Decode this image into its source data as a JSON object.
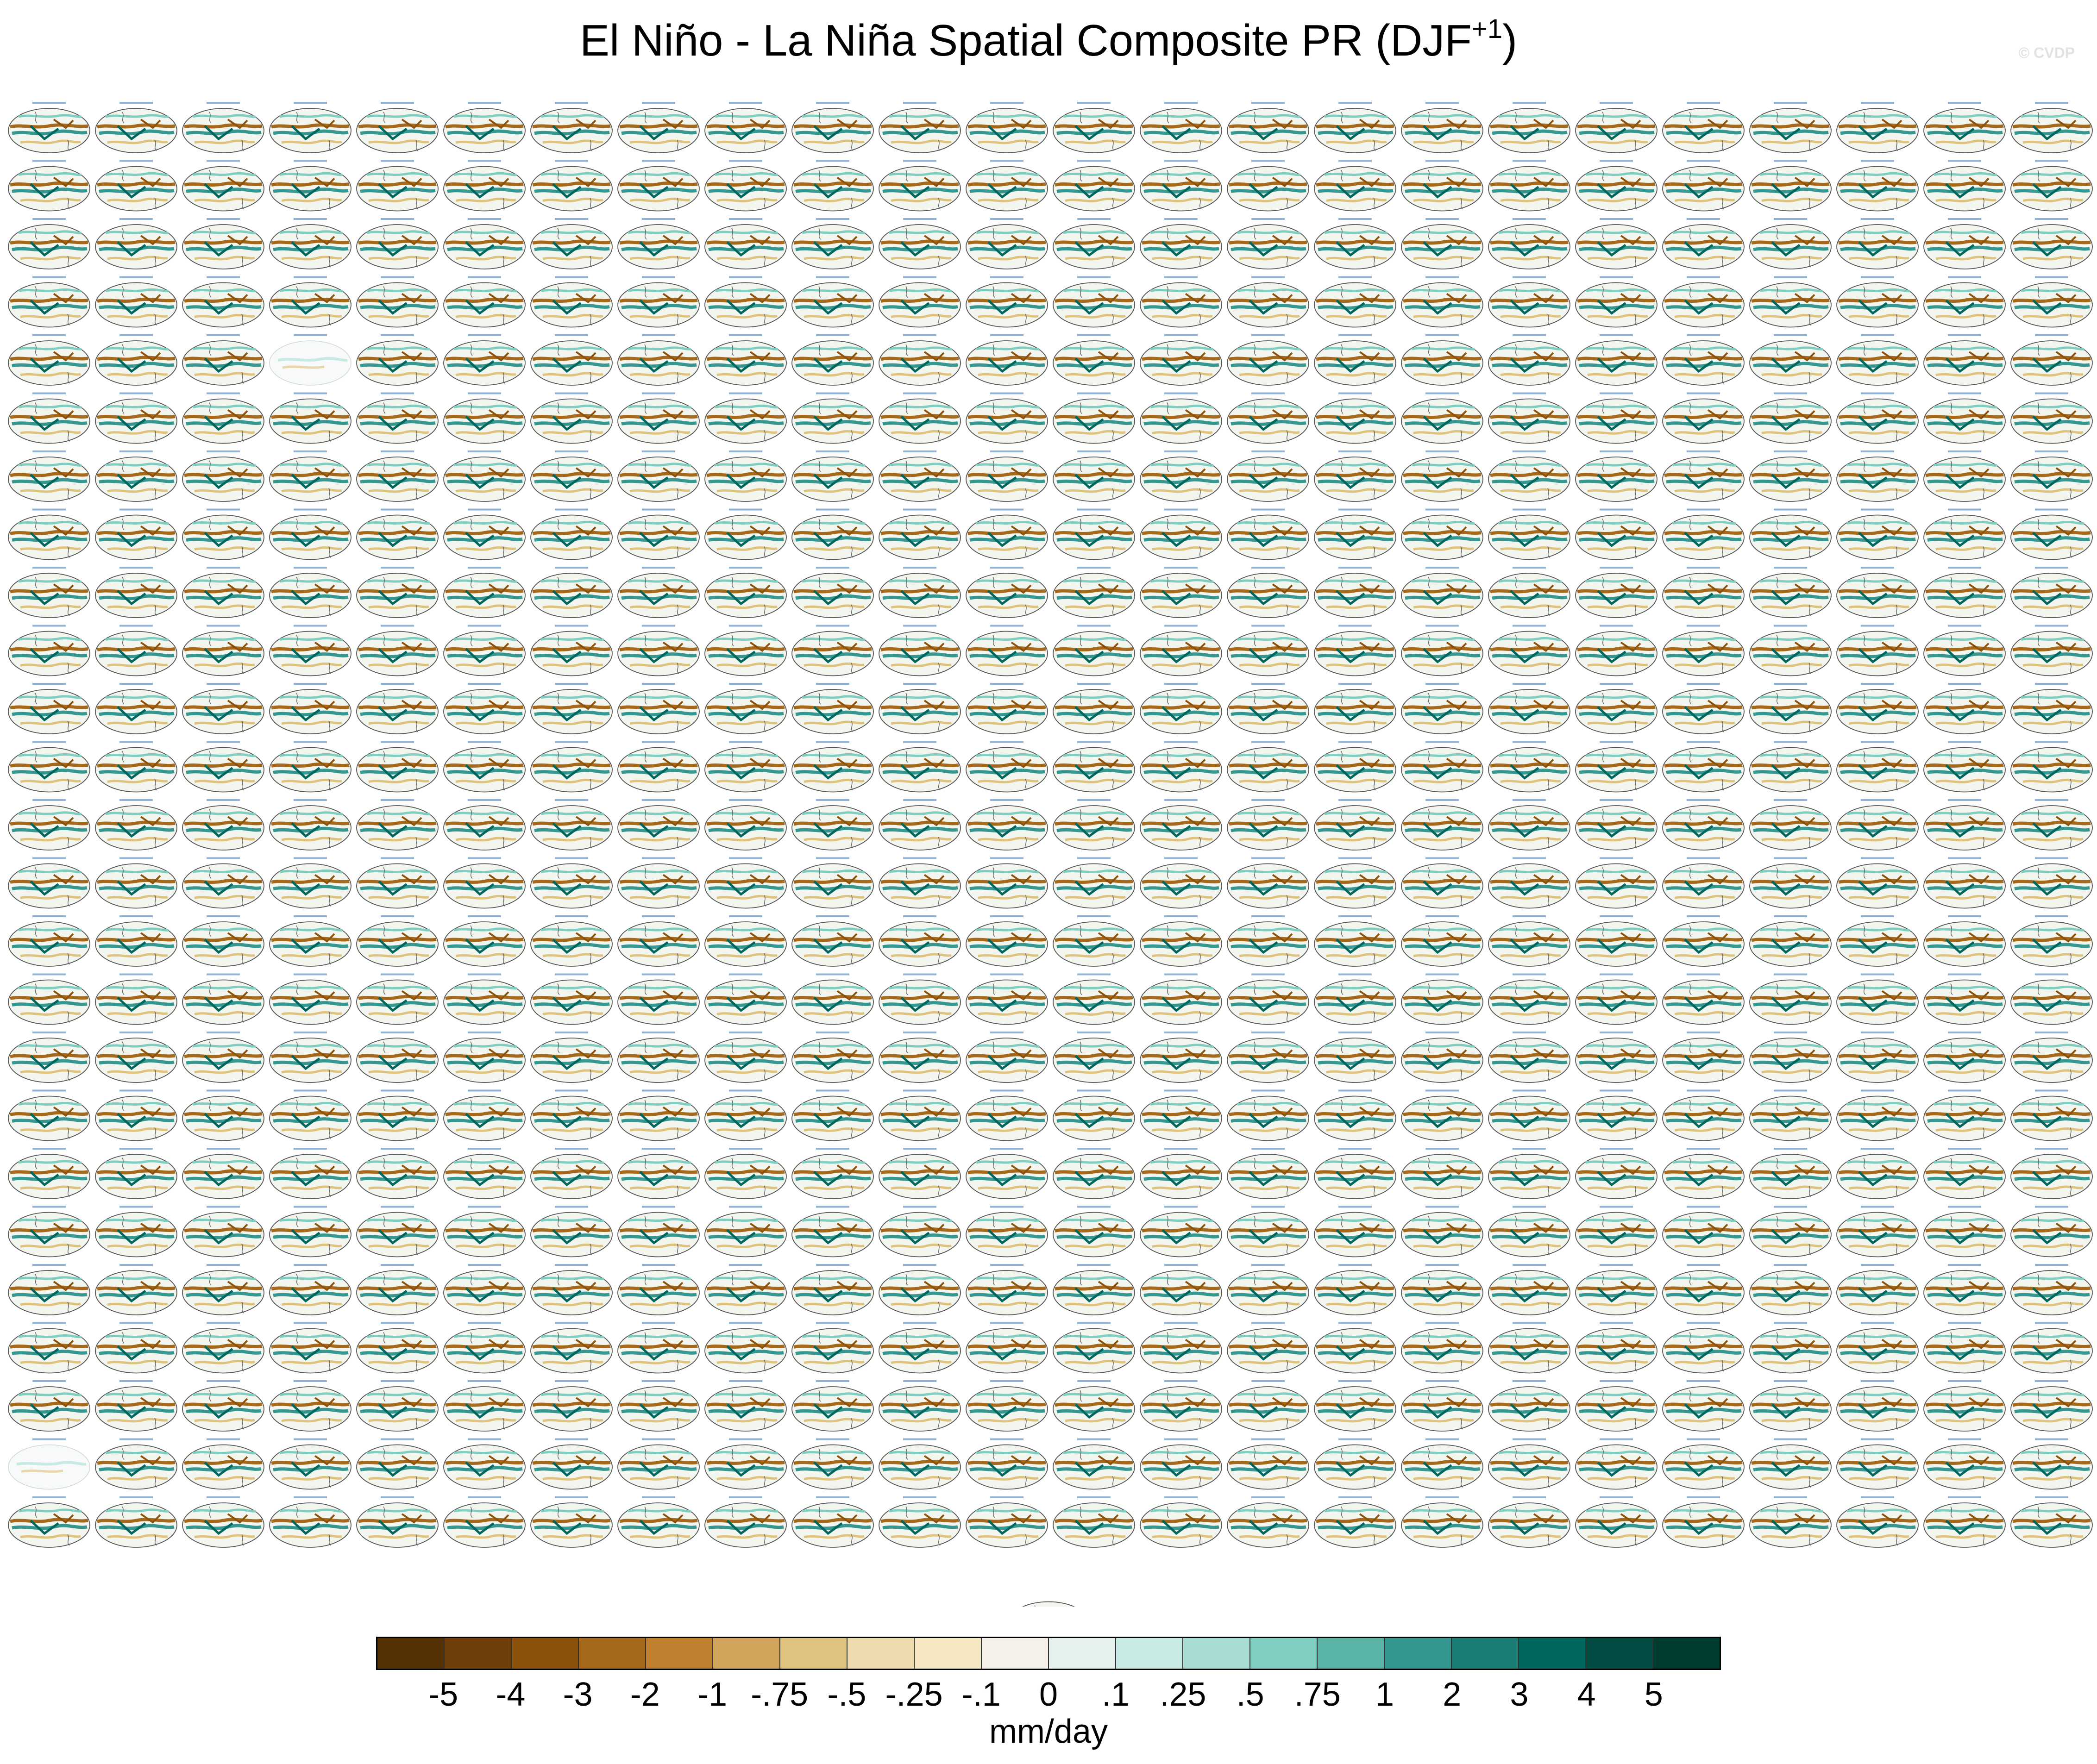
{
  "chart_data": {
    "type": "heatmap",
    "title": "El Niño - La Niña Spatial Composite PR (DJF",
    "title_superscript": "+1",
    "title_suffix": ")",
    "watermark": "© CVDP",
    "panels": {
      "grid_rows": 25,
      "grid_cols": 24,
      "extra_panel_count": 1,
      "faded_panels": [
        [
          4,
          3
        ],
        [
          23,
          0
        ]
      ]
    },
    "colorbar": {
      "units": "mm/day",
      "colors": [
        "#543005",
        "#6f3f0b",
        "#8c510a",
        "#a6691c",
        "#bf812d",
        "#d0a45a",
        "#dfc27d",
        "#efdcae",
        "#f6e8c3",
        "#f5f1ea",
        "#e6f2ee",
        "#c7eae5",
        "#a8ddd4",
        "#80cdc1",
        "#5ab4a6",
        "#35978f",
        "#1b7d73",
        "#01665e",
        "#014c42",
        "#003c30"
      ],
      "labels": [
        "-5",
        "-4",
        "-3",
        "-2",
        "-1",
        "-.75",
        "-.5",
        "-.25",
        "-.1",
        "0",
        ".1",
        ".25",
        ".5",
        ".75",
        "1",
        "2",
        "3",
        "4",
        "5"
      ]
    }
  }
}
